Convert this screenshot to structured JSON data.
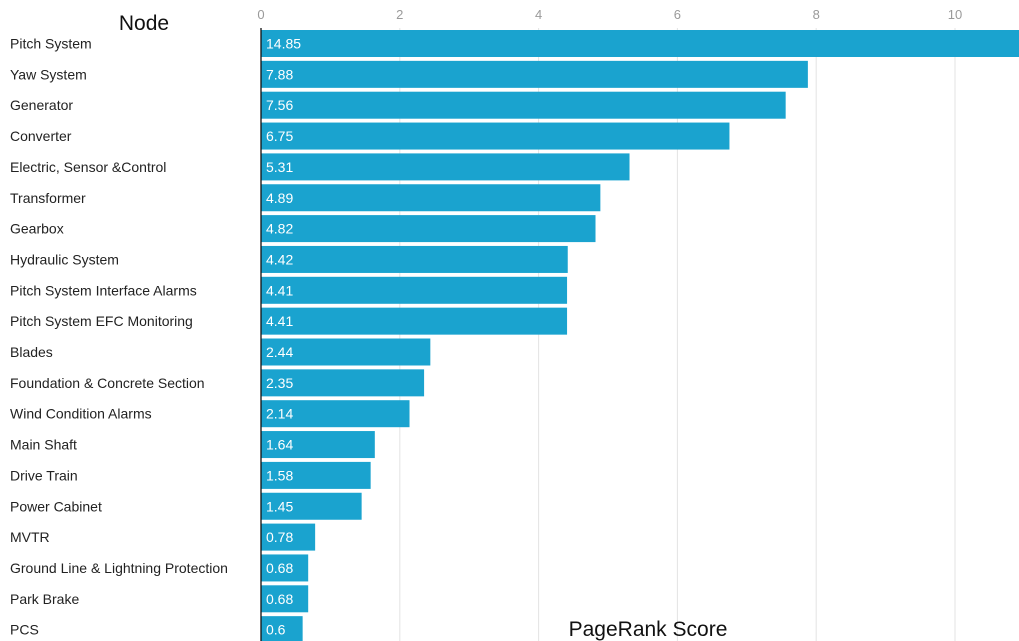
{
  "chart_data": {
    "type": "bar",
    "orientation": "horizontal",
    "title": "",
    "ylabel": "Node",
    "xlabel": "PageRank Score",
    "xlim": [
      0,
      10.9
    ],
    "xticks": [
      0,
      2,
      4,
      6,
      8,
      10
    ],
    "grid": true,
    "bar_color": "#1aa3cf",
    "categories": [
      "Pitch System",
      "Yaw System",
      "Generator",
      "Converter",
      "Electric, Sensor &Control",
      "Transformer",
      "Gearbox",
      "Hydraulic System",
      "Pitch System Interface Alarms",
      "Pitch System EFC Monitoring",
      "Blades",
      "Foundation & Concrete Section",
      "Wind Condition Alarms",
      "Main Shaft",
      "Drive Train",
      "Power Cabinet",
      "MVTR",
      "Ground Line & Lightning Protection",
      "Park Brake",
      "PCS"
    ],
    "values": [
      14.85,
      7.88,
      7.56,
      6.75,
      5.31,
      4.89,
      4.82,
      4.42,
      4.41,
      4.41,
      2.44,
      2.35,
      2.14,
      1.64,
      1.58,
      1.45,
      0.78,
      0.68,
      0.68,
      0.6
    ],
    "value_labels": [
      "14.85",
      "7.88",
      "7.56",
      "6.75",
      "5.31",
      "4.89",
      "4.82",
      "4.42",
      "4.41",
      "4.41",
      "2.44",
      "2.35",
      "2.14",
      "1.64",
      "1.58",
      "1.45",
      "0.78",
      "0.68",
      "0.68",
      "0.6"
    ]
  }
}
